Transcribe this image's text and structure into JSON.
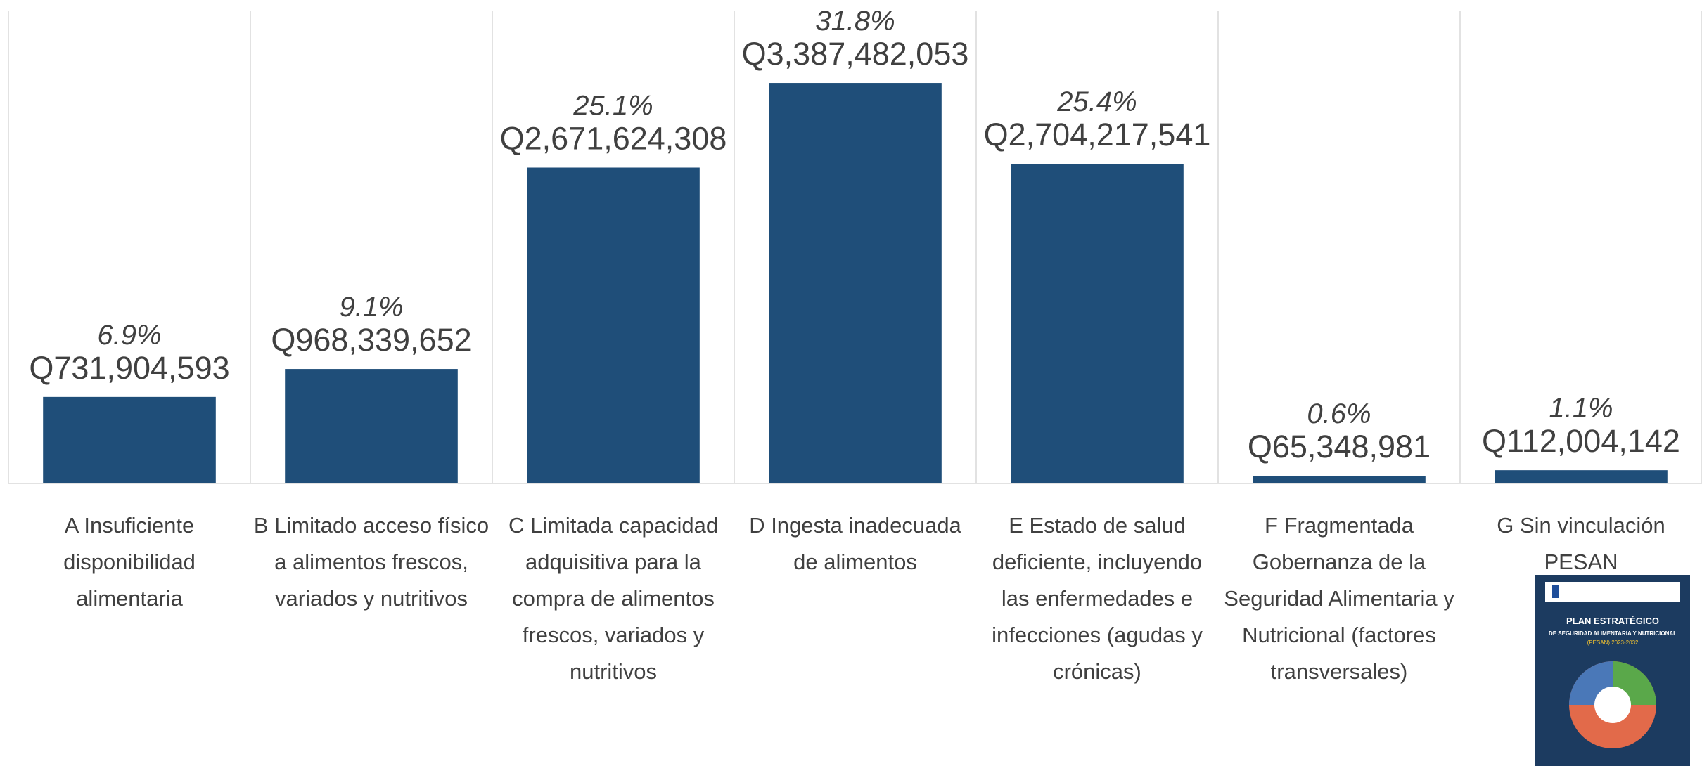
{
  "chart_data": {
    "type": "bar",
    "categories": [
      "A Insuficiente disponibilidad alimentaria",
      "B Limitado acceso físico a alimentos frescos, variados y nutritivos",
      "C Limitada capacidad adquisitiva para la compra de alimentos frescos, variados y nutritivos",
      "D Ingesta inadecuada de alimentos",
      "E Estado de salud deficiente, incluyendo las enfermedades e infecciones (agudas y crónicas)",
      "F Fragmentada Gobernanza de la Seguridad Alimentaria y Nutricional (factores transversales)",
      "G Sin vinculación PESAN"
    ],
    "values": [
      731904593,
      968339652,
      2671624308,
      3387482053,
      2704217541,
      65348981,
      112004142
    ],
    "value_labels": [
      "Q731,904,593",
      "Q968,339,652",
      "Q2,671,624,308",
      "Q3,387,482,053",
      "Q2,704,217,541",
      "Q65,348,981",
      "Q112,004,142"
    ],
    "percent_labels": [
      "6.9%",
      "9.1%",
      "25.1%",
      "31.8%",
      "25.4%",
      "0.6%",
      "1.1%"
    ],
    "color": "#1f4e79",
    "ylim": [
      0,
      4000000000
    ]
  },
  "cover": {
    "title": "PLAN ESTRATÉGICO",
    "subtitle": "DE SEGURIDAD ALIMENTARIA Y NUTRICIONAL",
    "code": "(PESAN) 2023-2032"
  }
}
